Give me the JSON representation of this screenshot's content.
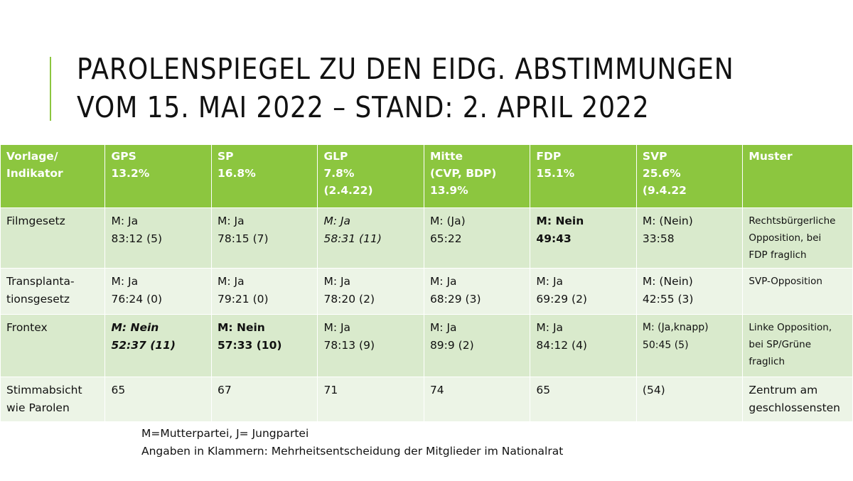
{
  "title": {
    "line1": "PAROLENSPIEGEL ZU DEN EIDG. ABSTIMMUNGEN",
    "line2": "VOM 15. MAI 2022 – STAND: 2. APRIL 2022"
  },
  "colors": {
    "accent": "#8cc63f",
    "row_dark": "#d9eacc",
    "row_light": "#ecf4e6"
  },
  "table": {
    "headers": [
      [
        "Vorlage/",
        "Indikator"
      ],
      [
        "GPS",
        "13.2%"
      ],
      [
        "SP",
        "16.8%"
      ],
      [
        "GLP",
        "7.8%",
        "(2.4.22)"
      ],
      [
        "Mitte",
        "(CVP, BDP)",
        "13.9%"
      ],
      [
        "FDP",
        "15.1%"
      ],
      [
        "SVP",
        "25.6%",
        "(9.4.22"
      ],
      [
        "Muster"
      ]
    ],
    "rows": [
      {
        "label": [
          "Filmgesetz"
        ],
        "gps": [
          "M: Ja",
          "83:12 (5)"
        ],
        "sp": [
          "M: Ja",
          "78:15 (7)"
        ],
        "glp": [
          "M: Ja",
          "58:31 (11)"
        ],
        "mitte": [
          "M: (Ja)",
          "65:22"
        ],
        "fdp": [
          "M: Nein",
          "49:43"
        ],
        "svp": [
          "M: (Nein)",
          "33:58"
        ],
        "muster": [
          "Rechtsbürgerliche",
          "Opposition, bei",
          "FDP fraglich"
        ]
      },
      {
        "label": [
          "Transplanta-",
          "tionsgesetz"
        ],
        "gps": [
          "M: Ja",
          "76:24 (0)"
        ],
        "sp": [
          "M: Ja",
          "79:21 (0)"
        ],
        "glp": [
          "M: Ja",
          "78:20 (2)"
        ],
        "mitte": [
          "M: Ja",
          "68:29 (3)"
        ],
        "fdp": [
          "M: Ja",
          "69:29 (2)"
        ],
        "svp": [
          "M: (Nein)",
          "42:55 (3)"
        ],
        "muster": [
          "SVP-Opposition"
        ]
      },
      {
        "label": [
          "Frontex"
        ],
        "gps": [
          "M: Nein",
          "52:37 (11)"
        ],
        "sp": [
          "M: Nein",
          "57:33 (10)"
        ],
        "glp": [
          "M: Ja",
          "78:13 (9)"
        ],
        "mitte": [
          "M: Ja",
          "89:9 (2)"
        ],
        "fdp": [
          "M: Ja",
          "84:12 (4)"
        ],
        "svp": [
          "M: (Ja,knapp)",
          "50:45 (5)"
        ],
        "muster": [
          "Linke Opposition,",
          "bei SP/Grüne",
          "fraglich"
        ]
      },
      {
        "label": [
          "Stimmabsicht",
          "wie Parolen"
        ],
        "gps": [
          "65"
        ],
        "sp": [
          "67"
        ],
        "glp": [
          "71"
        ],
        "mitte": [
          "74"
        ],
        "fdp": [
          "65"
        ],
        "svp": [
          "(54)"
        ],
        "muster": [
          "Zentrum am",
          "geschlossensten"
        ]
      }
    ]
  },
  "footnote": {
    "line1": "M=Mutterpartei, J= Jungpartei",
    "line2": "Angaben in Klammern: Mehrheitsentscheidung der Mitglieder im Nationalrat"
  }
}
